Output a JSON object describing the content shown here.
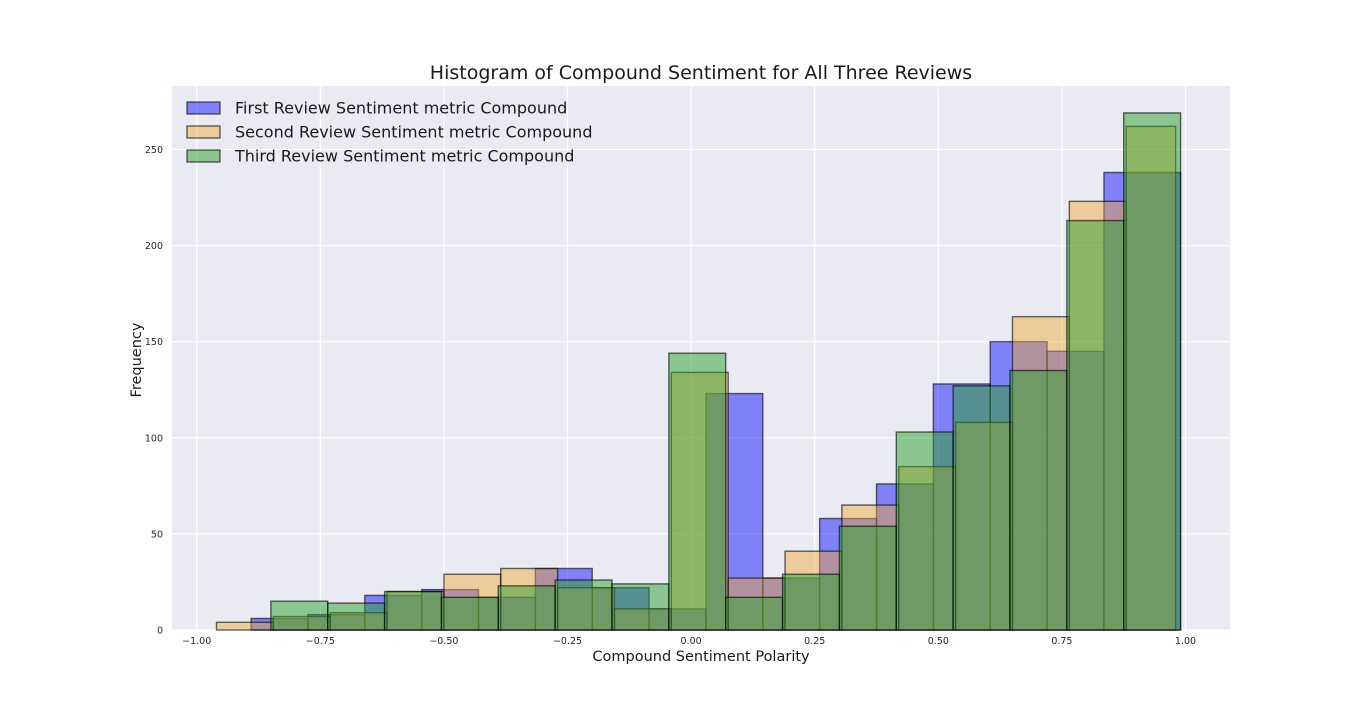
{
  "chart_data": {
    "type": "bar",
    "title": "Histogram of Compound Sentiment for All Three Reviews",
    "xlabel": "Compound Sentiment Polarity",
    "ylabel": "Frequency",
    "xlim": [
      -1.05,
      1.09
    ],
    "ylim": [
      0,
      283
    ],
    "xticks": [
      -1.0,
      -0.75,
      -0.5,
      -0.25,
      0.0,
      0.25,
      0.5,
      0.75,
      1.0
    ],
    "xtick_labels": [
      "−1.00",
      "−0.75",
      "−0.50",
      "−0.25",
      "0.00",
      "0.25",
      "0.50",
      "0.75",
      "1.00"
    ],
    "yticks": [
      0,
      50,
      100,
      150,
      200,
      250
    ],
    "ytick_labels": [
      "0",
      "50",
      "100",
      "150",
      "200",
      "250"
    ],
    "grid": true,
    "legend_position": "top-left",
    "series": [
      {
        "name": "First Review Sentiment metric Compound",
        "color": "#0000ff",
        "alpha": 0.45,
        "edges": [
          -0.89,
          -0.775,
          -0.66,
          -0.545,
          -0.43,
          -0.315,
          -0.2,
          -0.085,
          0.03,
          0.145,
          0.26,
          0.375,
          0.49,
          0.605,
          0.72,
          0.835,
          0.99
        ],
        "values": [
          6,
          8,
          18,
          21,
          17,
          32,
          22,
          11,
          123,
          27,
          58,
          76,
          128,
          150,
          145,
          238
        ]
      },
      {
        "name": "Second Review Sentiment metric Compound",
        "color": "#f0a830",
        "alpha": 0.45,
        "edges": [
          -0.96,
          -0.845,
          -0.73,
          -0.615,
          -0.5,
          -0.385,
          -0.27,
          -0.155,
          -0.04,
          0.075,
          0.19,
          0.305,
          0.42,
          0.535,
          0.65,
          0.765,
          0.88,
          0.98
        ],
        "values": [
          4,
          7,
          9,
          20,
          29,
          32,
          22,
          11,
          134,
          27,
          41,
          65,
          85,
          108,
          163,
          223,
          262
        ]
      },
      {
        "name": "Third Review Sentiment metric Compound",
        "color": "#2ca02c",
        "alpha": 0.5,
        "edges": [
          -0.85,
          -0.735,
          -0.62,
          -0.505,
          -0.39,
          -0.275,
          -0.16,
          -0.045,
          0.07,
          0.185,
          0.3,
          0.415,
          0.53,
          0.645,
          0.76,
          0.875,
          0.99
        ],
        "values": [
          15,
          14,
          20,
          17,
          23,
          26,
          24,
          144,
          17,
          29,
          54,
          103,
          127,
          135,
          213,
          269
        ]
      }
    ]
  }
}
